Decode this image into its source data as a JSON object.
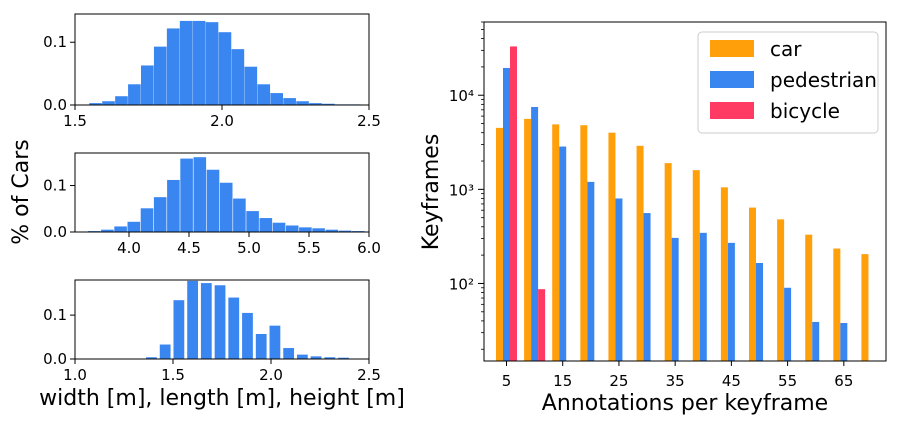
{
  "figure": {
    "shared_ylabel": "% of Cars",
    "shared_xlabel": "width [m], length [m], height [m]"
  },
  "colors": {
    "car": "#ff9f0a",
    "pedestrian": "#3a86f0",
    "bicycle": "#ff3b64",
    "axis": "#000000"
  },
  "chart_data": [
    {
      "id": "width",
      "type": "bar",
      "xlim": [
        1.5,
        2.5
      ],
      "ylim": [
        0,
        0.145
      ],
      "xticks": [
        1.5,
        2.0,
        2.5
      ],
      "xtick_labels": [
        "1.5",
        "2.0",
        "2.5"
      ],
      "yticks": [
        0,
        0.1
      ],
      "ytick_labels": [
        "0.0",
        "0.1"
      ],
      "bin_width": 0.043,
      "x": [
        1.57,
        1.614,
        1.658,
        1.702,
        1.746,
        1.79,
        1.834,
        1.878,
        1.922,
        1.966,
        2.01,
        2.054,
        2.098,
        2.142,
        2.186,
        2.23,
        2.274,
        2.318,
        2.362,
        2.406,
        2.45
      ],
      "values": [
        0.003,
        0.006,
        0.014,
        0.033,
        0.063,
        0.093,
        0.122,
        0.134,
        0.134,
        0.132,
        0.116,
        0.089,
        0.061,
        0.033,
        0.019,
        0.011,
        0.006,
        0.003,
        0.002,
        0.001,
        0.001
      ]
    },
    {
      "id": "length",
      "type": "bar",
      "xlim": [
        3.55,
        6.0
      ],
      "ylim": [
        0,
        0.17
      ],
      "xticks": [
        4.0,
        4.5,
        5.0,
        5.5,
        6.0
      ],
      "xtick_labels": [
        "4.0",
        "4.5",
        "5.0",
        "5.5",
        "6.0"
      ],
      "yticks": [
        0,
        0.1
      ],
      "ytick_labels": [
        "0.0",
        "0.1"
      ],
      "bin_width": 0.105,
      "x": [
        3.6,
        3.71,
        3.82,
        3.93,
        4.04,
        4.15,
        4.26,
        4.37,
        4.48,
        4.59,
        4.7,
        4.81,
        4.92,
        5.03,
        5.14,
        5.25,
        5.36,
        5.47,
        5.58,
        5.69,
        5.8,
        5.91
      ],
      "values": [
        0.001,
        0.002,
        0.005,
        0.012,
        0.022,
        0.051,
        0.075,
        0.112,
        0.158,
        0.161,
        0.134,
        0.106,
        0.072,
        0.045,
        0.03,
        0.02,
        0.014,
        0.01,
        0.008,
        0.005,
        0.003,
        0.002
      ]
    },
    {
      "id": "height",
      "type": "bar",
      "xlim": [
        1.0,
        2.5
      ],
      "ylim": [
        0,
        0.18
      ],
      "xticks": [
        1.0,
        1.5,
        2.0,
        2.5
      ],
      "xtick_labels": [
        "1.0",
        "1.5",
        "2.0",
        "2.5"
      ],
      "yticks": [
        0,
        0.1
      ],
      "ytick_labels": [
        "0.0",
        "0.1"
      ],
      "bin_width": 0.055,
      "x": [
        1.32,
        1.39,
        1.46,
        1.53,
        1.6,
        1.67,
        1.74,
        1.81,
        1.88,
        1.95,
        2.02,
        2.09,
        2.16,
        2.23,
        2.3,
        2.37,
        2.44
      ],
      "values": [
        0.001,
        0.004,
        0.033,
        0.134,
        0.178,
        0.173,
        0.168,
        0.14,
        0.105,
        0.057,
        0.076,
        0.025,
        0.01,
        0.006,
        0.004,
        0.003,
        0.001
      ]
    },
    {
      "id": "annotations",
      "type": "bar",
      "xlabel": "Annotations per keyframe",
      "ylabel": "Keyframes",
      "yscale": "log",
      "ylim": [
        15,
        60000
      ],
      "yticks": [
        100,
        1000,
        10000
      ],
      "ytick_labels": [
        "10²",
        "10³",
        "10⁴"
      ],
      "x": [
        5,
        10,
        15,
        20,
        25,
        30,
        35,
        40,
        45,
        50,
        55,
        60,
        65,
        70
      ],
      "xticks": [
        5,
        15,
        25,
        35,
        45,
        55,
        65
      ],
      "xtick_labels": [
        "5",
        "15",
        "25",
        "35",
        "45",
        "55",
        "65"
      ],
      "xlim": [
        1,
        72.5
      ],
      "legend": {
        "position": "top-right"
      },
      "series": [
        {
          "name": "car",
          "values": [
            4500,
            5600,
            4900,
            4800,
            4000,
            2900,
            1900,
            1600,
            1050,
            640,
            480,
            330,
            235,
            205
          ]
        },
        {
          "name": "pedestrian",
          "values": [
            19500,
            7500,
            2850,
            1200,
            800,
            560,
            305,
            345,
            270,
            165,
            90,
            39,
            38,
            null
          ]
        },
        {
          "name": "bicycle",
          "values": [
            33000,
            87,
            null,
            null,
            null,
            null,
            null,
            null,
            null,
            null,
            null,
            null,
            null,
            null
          ]
        }
      ]
    }
  ]
}
